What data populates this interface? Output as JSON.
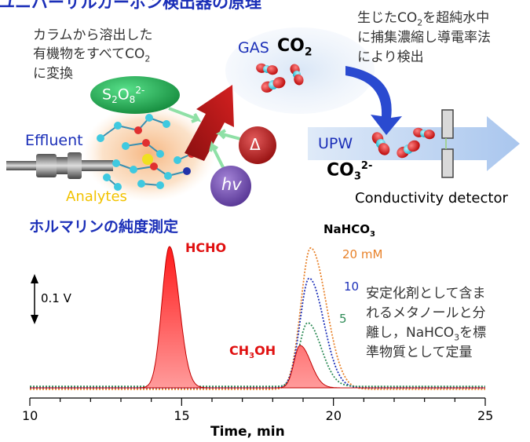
{
  "top_title": "ユニバーサルカーボン検出器の原理",
  "left_note": [
    "カラムから溶出した",
    "有機物をすべてCO",
    "に変換"
  ],
  "left_note_sub": "2",
  "right_note": [
    "生じたCO",
    "を超純水中",
    "に捕集濃縮し導電率法",
    "により検出"
  ],
  "right_note_sub": "2",
  "labels": {
    "persulfate": "S2O8 2-",
    "persulfate_main": "S",
    "persulfate_s1": "2",
    "persulfate_o": "O",
    "persulfate_s2": "8",
    "persulfate_sup": "2-",
    "gas": "GAS",
    "co2": "CO",
    "co2_sub": "2",
    "effluent": "Effluent",
    "analytes": "Analytes",
    "delta": "Δ",
    "hv": "hv",
    "upw": "UPW",
    "co3": "CO",
    "co3_sub": "3",
    "co3_sup": "2-",
    "conductivity": "Conductivity detector"
  },
  "chart_title": "ホルマリンの純度測定",
  "chart_notes": [
    "安定化剤として含ま",
    "れるメタノールと分",
    "離し，NaHCO",
    "を標",
    "準物質として定量"
  ],
  "chart_notes_sub": "3",
  "chart_data": {
    "type": "line",
    "xlabel": "Time, min",
    "x_ticks": [
      10,
      15,
      20,
      25
    ],
    "xlim": [
      10,
      25
    ],
    "scale_bar_label": "0.1 V",
    "peak_labels": [
      "HCHO",
      "CH",
      "3",
      "OH"
    ],
    "standard_title": "NaHCO",
    "standard_title_sub": "3",
    "series": [
      {
        "name": "20 mM",
        "color": "#e8822a"
      },
      {
        "name": "10",
        "color": "#1b2fb8"
      },
      {
        "name": "5",
        "color": "#2e8b57"
      }
    ],
    "sample_peaks": [
      {
        "label": "HCHO",
        "time": 14.6,
        "height": 0.2
      },
      {
        "label": "CH3OH",
        "time": 18.9,
        "height": 0.06
      }
    ],
    "standard_peaks": [
      {
        "name": "20 mM",
        "time": 19.25,
        "height": 0.2
      },
      {
        "name": "10",
        "time": 19.2,
        "height": 0.155
      },
      {
        "name": "5",
        "time": 19.15,
        "height": 0.09
      }
    ]
  }
}
